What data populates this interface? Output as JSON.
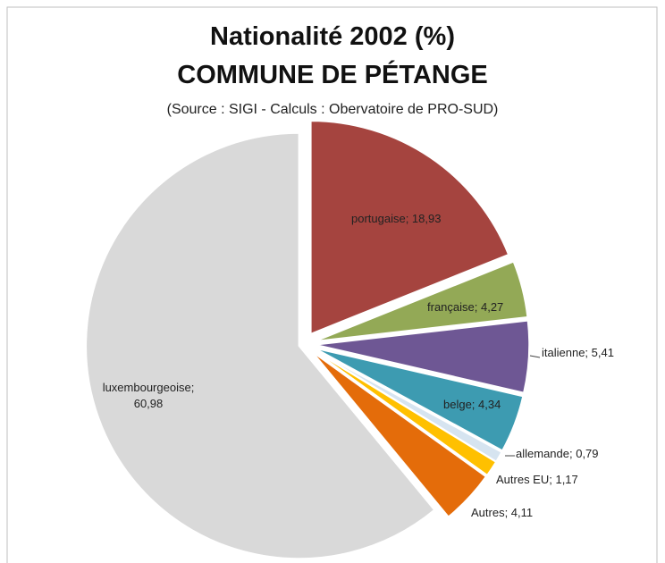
{
  "chart_data": {
    "type": "pie",
    "title": "Nationalité 2002 (%)",
    "subtitle": "COMMUNE DE PÉTANGE",
    "source": "(Source : SIGI - Calculs : Obervatoire de PRO-SUD)",
    "values": [
      18.93,
      4.27,
      5.41,
      4.34,
      0.79,
      1.17,
      4.11,
      60.98
    ],
    "value_labels": [
      "portugaise; 18,93",
      "française; 4,27",
      "italienne; 5,41",
      "belge; 4,34",
      "allemande; 0,79",
      "Autres EU; 1,17",
      "Autres; 4,11",
      "luxembourgeoise; 60,98"
    ],
    "colors": [
      "#a5443f",
      "#93a956",
      "#6e5794",
      "#3d9bb1",
      "#d6e4f0",
      "#ffc000",
      "#e46c0a",
      "#d9d9d9"
    ]
  }
}
